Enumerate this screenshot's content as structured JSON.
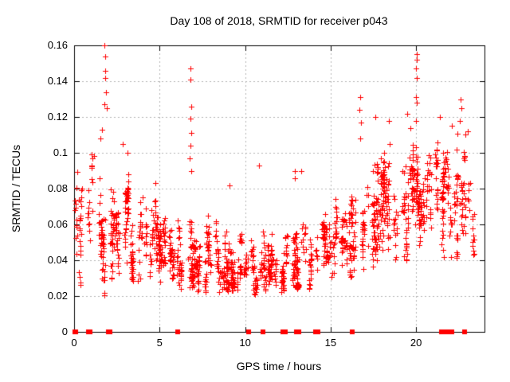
{
  "chart_data": {
    "type": "scatter",
    "title": "Day 108 of 2018, SRMTID for receiver p043",
    "xlabel": "GPS time / hours",
    "ylabel": "SRMTID / TECUs",
    "xlim": [
      0,
      24
    ],
    "ylim": [
      0,
      0.16
    ],
    "xticks": [
      0,
      5,
      10,
      15,
      20
    ],
    "xtick_labels": [
      "0",
      "5",
      "10",
      "15",
      "20"
    ],
    "yticks": [
      0,
      0.02,
      0.04,
      0.06,
      0.08,
      0.1,
      0.12,
      0.14,
      0.16
    ],
    "ytick_labels": [
      "0",
      "0.02",
      "0.04",
      "0.06",
      "0.08",
      "0.1",
      "0.12",
      "0.14",
      "0.16"
    ],
    "grid": true,
    "legend": null,
    "marker": "plus",
    "marker_color": "#ff0000",
    "grid_color": "#b4b4b4",
    "border_color": "#000000",
    "feature_points": [
      [
        1.78,
        0.16
      ],
      [
        1.8,
        0.154
      ],
      [
        1.83,
        0.146
      ],
      [
        1.8,
        0.142
      ],
      [
        1.85,
        0.134
      ],
      [
        1.76,
        0.127
      ],
      [
        1.9,
        0.125
      ],
      [
        1.62,
        0.113
      ],
      [
        1.55,
        0.108
      ],
      [
        2.85,
        0.105
      ],
      [
        3.1,
        0.1
      ],
      [
        6.82,
        0.147
      ],
      [
        6.8,
        0.141
      ],
      [
        6.84,
        0.126
      ],
      [
        6.8,
        0.119
      ],
      [
        6.83,
        0.111
      ],
      [
        6.8,
        0.104
      ],
      [
        6.78,
        0.097
      ],
      [
        6.85,
        0.09
      ],
      [
        9.1,
        0.082
      ],
      [
        10.8,
        0.093
      ],
      [
        12.9,
        0.086
      ],
      [
        12.92,
        0.09
      ],
      [
        13.3,
        0.09
      ],
      [
        16.75,
        0.131
      ],
      [
        16.7,
        0.124
      ],
      [
        16.78,
        0.117
      ],
      [
        16.72,
        0.108
      ],
      [
        17.6,
        0.12
      ],
      [
        18.4,
        0.118
      ],
      [
        19.5,
        0.122
      ],
      [
        20.02,
        0.155
      ],
      [
        20.05,
        0.152
      ],
      [
        20.0,
        0.147
      ],
      [
        20.03,
        0.142
      ],
      [
        20.0,
        0.131
      ],
      [
        20.06,
        0.128
      ],
      [
        19.98,
        0.118
      ],
      [
        21.4,
        0.12
      ],
      [
        22.1,
        0.115
      ],
      [
        22.6,
        0.13
      ],
      [
        22.64,
        0.125
      ],
      [
        22.55,
        0.118
      ],
      [
        23.0,
        0.112
      ]
    ],
    "zero_points": [
      0.05,
      0.1,
      0.85,
      0.95,
      2.0,
      2.1,
      6.05,
      10.2,
      11.05,
      12.2,
      12.35,
      13.0,
      13.15,
      14.1,
      14.25,
      16.25,
      21.5,
      21.6,
      21.7,
      21.8,
      21.9,
      22.0,
      22.1,
      22.85
    ],
    "density_bins": [
      {
        "x0": 0.0,
        "x1": 1.0,
        "count": 45,
        "ymin": 0.018,
        "ymax": 0.098,
        "peak": 0.048
      },
      {
        "x0": 1.0,
        "x1": 2.0,
        "count": 55,
        "ymin": 0.02,
        "ymax": 0.118,
        "peak": 0.055
      },
      {
        "x0": 2.0,
        "x1": 3.0,
        "count": 70,
        "ymin": 0.028,
        "ymax": 0.108,
        "peak": 0.052
      },
      {
        "x0": 3.0,
        "x1": 4.0,
        "count": 80,
        "ymin": 0.028,
        "ymax": 0.102,
        "peak": 0.05
      },
      {
        "x0": 4.0,
        "x1": 5.0,
        "count": 75,
        "ymin": 0.025,
        "ymax": 0.09,
        "peak": 0.045
      },
      {
        "x0": 5.0,
        "x1": 6.0,
        "count": 70,
        "ymin": 0.025,
        "ymax": 0.08,
        "peak": 0.042
      },
      {
        "x0": 6.0,
        "x1": 7.0,
        "count": 75,
        "ymin": 0.024,
        "ymax": 0.075,
        "peak": 0.04
      },
      {
        "x0": 7.0,
        "x1": 8.0,
        "count": 80,
        "ymin": 0.022,
        "ymax": 0.068,
        "peak": 0.038
      },
      {
        "x0": 8.0,
        "x1": 9.0,
        "count": 75,
        "ymin": 0.022,
        "ymax": 0.078,
        "peak": 0.038
      },
      {
        "x0": 9.0,
        "x1": 10.0,
        "count": 65,
        "ymin": 0.02,
        "ymax": 0.065,
        "peak": 0.036
      },
      {
        "x0": 10.0,
        "x1": 11.0,
        "count": 60,
        "ymin": 0.02,
        "ymax": 0.062,
        "peak": 0.035
      },
      {
        "x0": 11.0,
        "x1": 12.0,
        "count": 65,
        "ymin": 0.022,
        "ymax": 0.068,
        "peak": 0.038
      },
      {
        "x0": 12.0,
        "x1": 13.0,
        "count": 70,
        "ymin": 0.022,
        "ymax": 0.075,
        "peak": 0.04
      },
      {
        "x0": 13.0,
        "x1": 14.0,
        "count": 70,
        "ymin": 0.024,
        "ymax": 0.088,
        "peak": 0.042
      },
      {
        "x0": 14.0,
        "x1": 15.0,
        "count": 65,
        "ymin": 0.025,
        "ymax": 0.08,
        "peak": 0.042
      },
      {
        "x0": 15.0,
        "x1": 16.0,
        "count": 60,
        "ymin": 0.025,
        "ymax": 0.09,
        "peak": 0.046
      },
      {
        "x0": 16.0,
        "x1": 17.0,
        "count": 70,
        "ymin": 0.03,
        "ymax": 0.102,
        "peak": 0.052
      },
      {
        "x0": 17.0,
        "x1": 18.0,
        "count": 75,
        "ymin": 0.035,
        "ymax": 0.115,
        "peak": 0.06
      },
      {
        "x0": 18.0,
        "x1": 19.0,
        "count": 80,
        "ymin": 0.04,
        "ymax": 0.118,
        "peak": 0.065
      },
      {
        "x0": 19.0,
        "x1": 20.0,
        "count": 80,
        "ymin": 0.04,
        "ymax": 0.122,
        "peak": 0.068
      },
      {
        "x0": 20.0,
        "x1": 21.0,
        "count": 80,
        "ymin": 0.045,
        "ymax": 0.128,
        "peak": 0.07
      },
      {
        "x0": 21.0,
        "x1": 22.0,
        "count": 75,
        "ymin": 0.04,
        "ymax": 0.118,
        "peak": 0.068
      },
      {
        "x0": 22.0,
        "x1": 23.0,
        "count": 70,
        "ymin": 0.04,
        "ymax": 0.125,
        "peak": 0.066
      },
      {
        "x0": 23.0,
        "x1": 23.35,
        "count": 18,
        "ymin": 0.04,
        "ymax": 0.09,
        "peak": 0.06
      }
    ]
  }
}
